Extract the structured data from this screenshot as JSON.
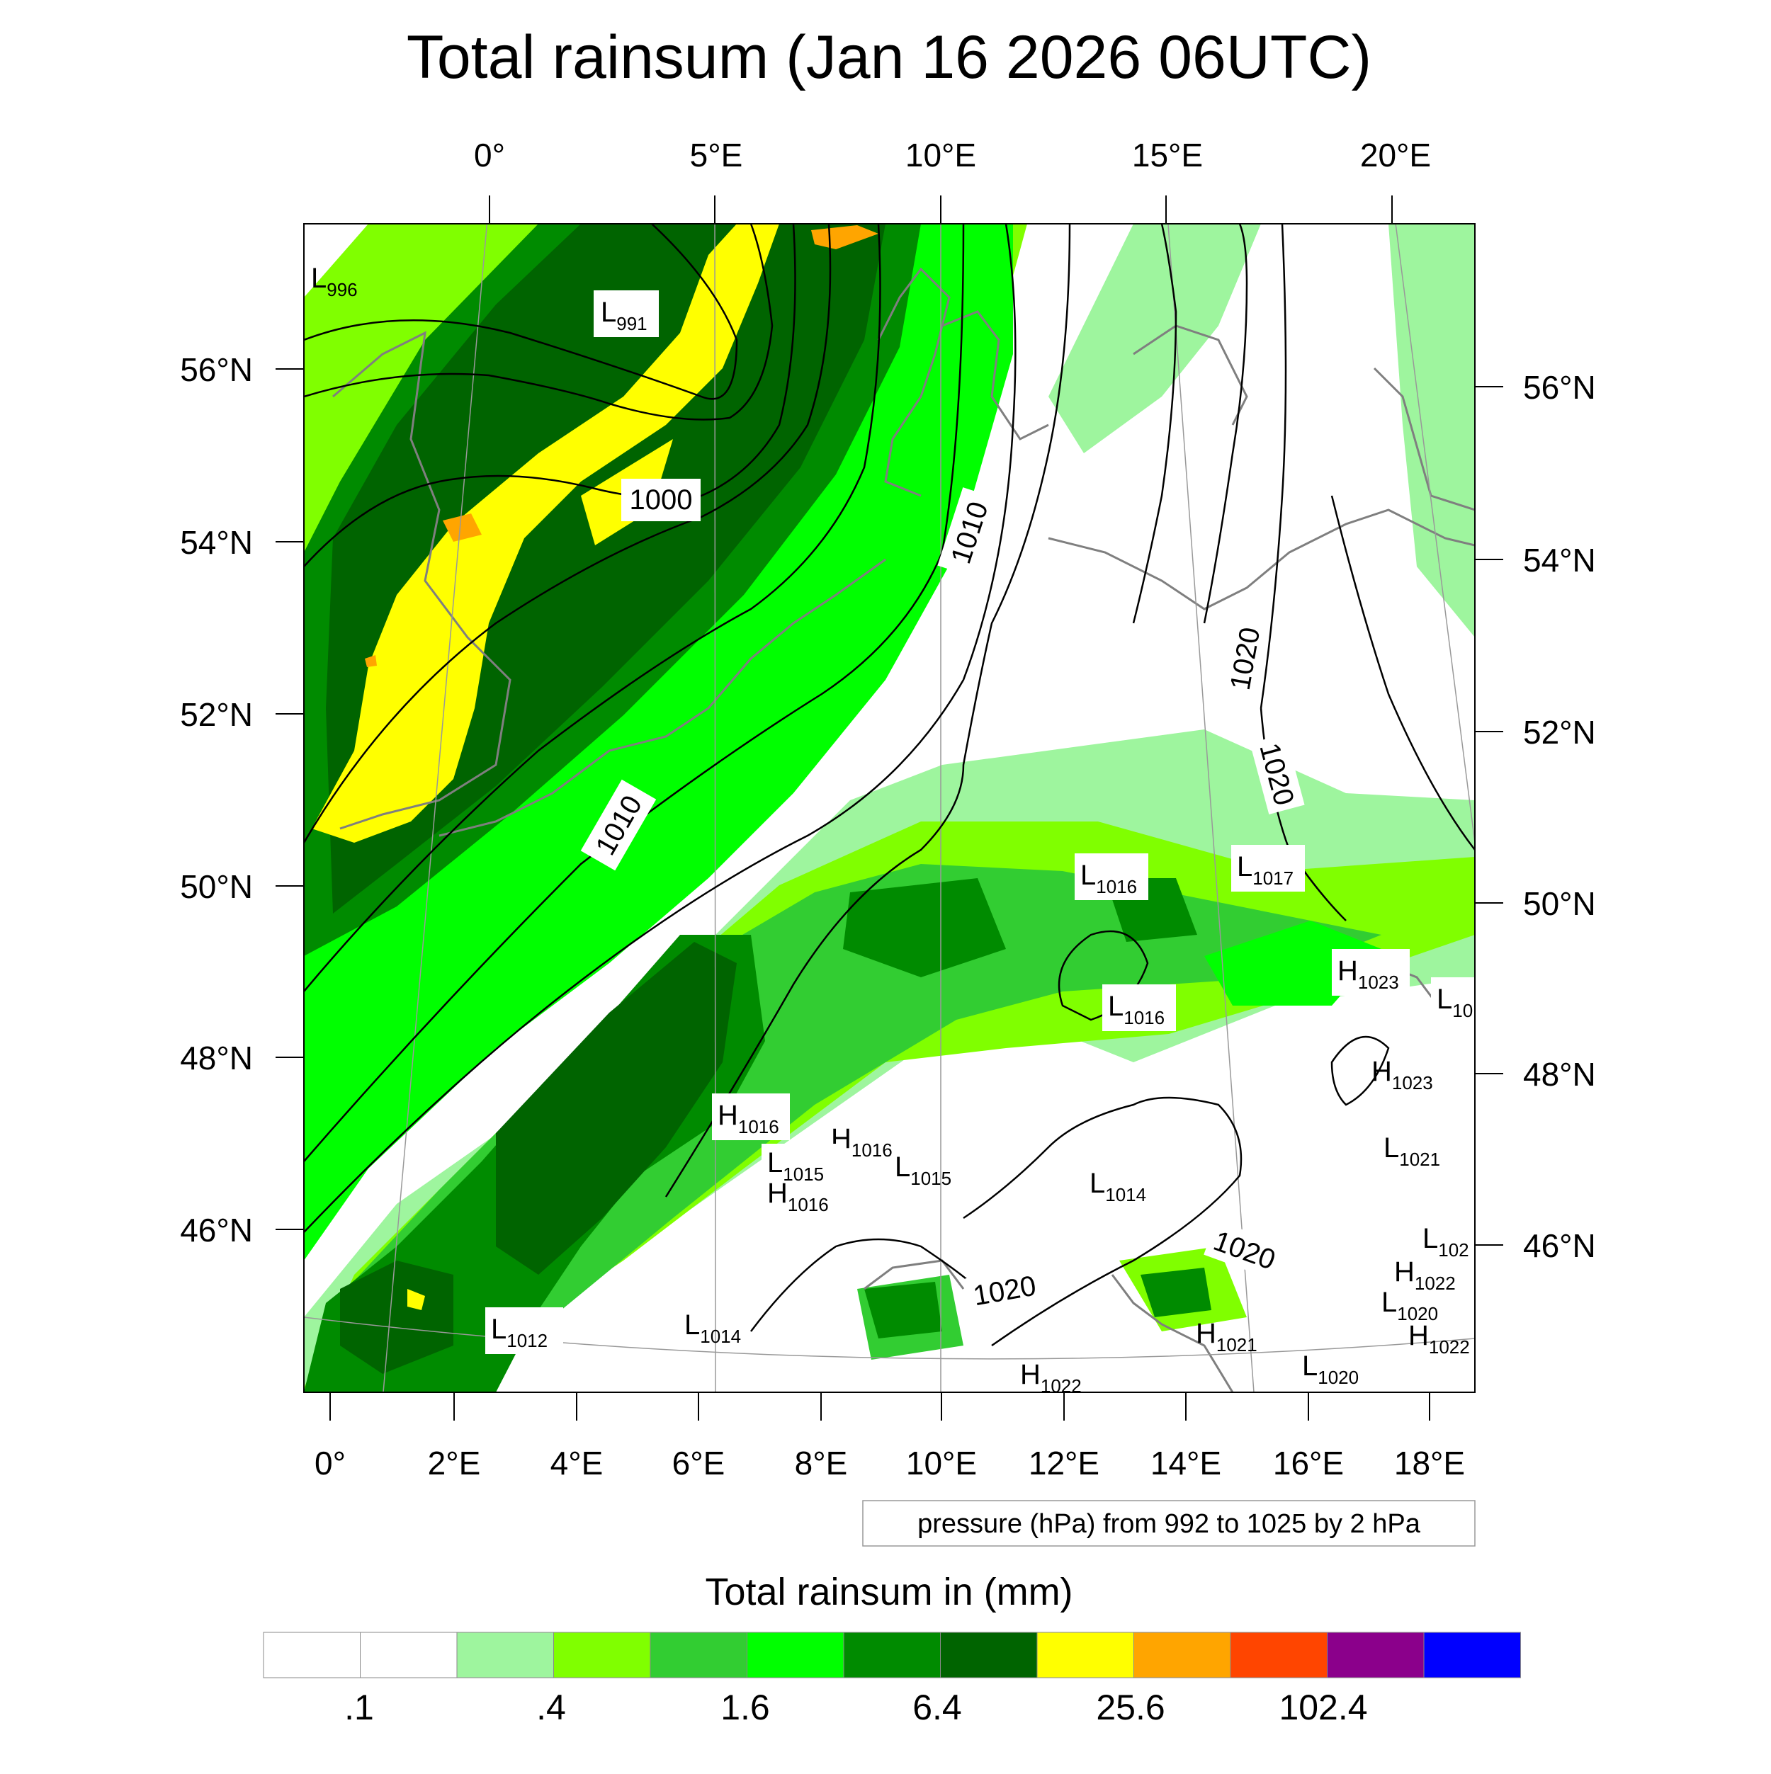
{
  "title": "Total rainsum (Jan 16 2026 06UTC)",
  "top_lon_labels": [
    "0°",
    "5°E",
    "10°E",
    "15°E",
    "20°E"
  ],
  "bottom_lon_labels": [
    "0°",
    "2°E",
    "4°E",
    "6°E",
    "8°E",
    "10°E",
    "12°E",
    "14°E",
    "16°E",
    "18°E"
  ],
  "left_lat_labels": [
    "56°N",
    "54°N",
    "52°N",
    "50°N",
    "48°N",
    "46°N"
  ],
  "right_lat_labels": [
    "56°N",
    "54°N",
    "52°N",
    "50°N",
    "48°N",
    "46°N"
  ],
  "contour_info": "pressure (hPa) from 992 to 1025 by 2 hPa",
  "contour_labels": [
    {
      "id": "iso-1000",
      "text": "1000"
    },
    {
      "id": "iso-1010-north",
      "text": "1010"
    },
    {
      "id": "iso-1010-south",
      "text": "1010"
    },
    {
      "id": "iso-1020-a",
      "text": "1020"
    },
    {
      "id": "iso-1020-b",
      "text": "1020"
    },
    {
      "id": "iso-1020-c",
      "text": "1020"
    },
    {
      "id": "iso-1020-d",
      "text": "1020"
    }
  ],
  "pressure_centers": [
    {
      "type": "L",
      "value": "996"
    },
    {
      "type": "L",
      "value": "991"
    },
    {
      "type": "L",
      "value": "1016"
    },
    {
      "type": "L",
      "value": "1017"
    },
    {
      "type": "H",
      "value": "1023"
    },
    {
      "type": "L",
      "value": "1016"
    },
    {
      "type": "L",
      "value": "10"
    },
    {
      "type": "H",
      "value": "1023"
    },
    {
      "type": "H",
      "value": "1016"
    },
    {
      "type": "H",
      "value": "1016"
    },
    {
      "type": "L",
      "value": "1015"
    },
    {
      "type": "L",
      "value": "1015"
    },
    {
      "type": "H",
      "value": "1016"
    },
    {
      "type": "L",
      "value": "1014"
    },
    {
      "type": "L",
      "value": "1021"
    },
    {
      "type": "L",
      "value": "102"
    },
    {
      "type": "H",
      "value": "1022"
    },
    {
      "type": "L",
      "value": "1020"
    },
    {
      "type": "H",
      "value": "1022"
    },
    {
      "type": "L",
      "value": "1012"
    },
    {
      "type": "L",
      "value": "1014"
    },
    {
      "type": "H",
      "value": "1021"
    },
    {
      "type": "L",
      "value": "1020"
    },
    {
      "type": "H",
      "value": "1022"
    }
  ],
  "colorbar": {
    "title": "Total rainsum in (mm)",
    "colors": [
      "#ffffff",
      "#ffffff",
      "#9ef59e",
      "#80ff00",
      "#32cd32",
      "#00ff00",
      "#008b00",
      "#006400",
      "#ffff00",
      "#ffa500",
      "#ff4500",
      "#8b008b",
      "#0000ff"
    ],
    "tick_labels": [
      ".1",
      ".4",
      "1.6",
      "6.4",
      "25.6",
      "102.4"
    ]
  }
}
